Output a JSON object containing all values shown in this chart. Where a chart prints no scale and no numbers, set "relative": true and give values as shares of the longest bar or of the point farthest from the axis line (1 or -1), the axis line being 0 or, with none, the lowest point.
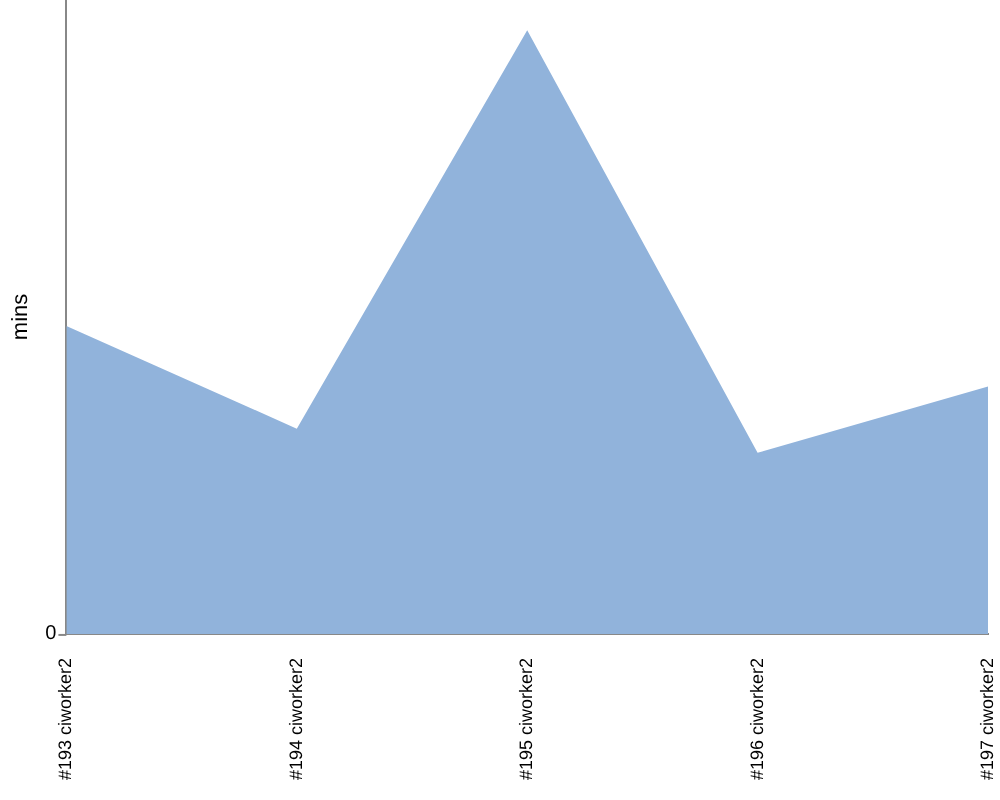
{
  "chart_data": {
    "type": "area",
    "ylabel": "mins",
    "relative": true,
    "categories": [
      "#193 ciworker2",
      "#194 ciworker2",
      "#195 ciworker2",
      "#196 ciworker2",
      "#197 ciworker2"
    ],
    "values": [
      0.51,
      0.34,
      1,
      0.3,
      0.41
    ],
    "color": "#91b3db",
    "annotations": [
      "0"
    ],
    "legend": false
  }
}
